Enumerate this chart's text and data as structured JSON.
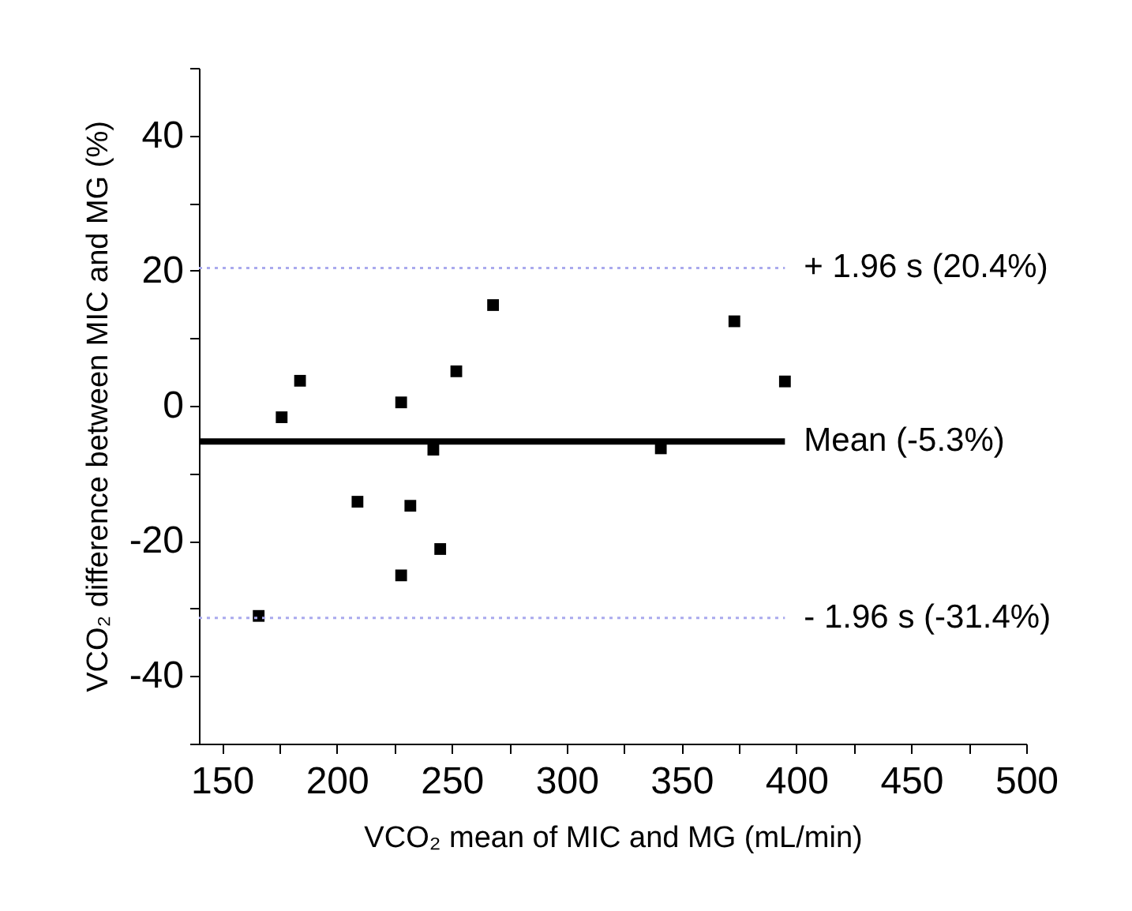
{
  "chart_data": {
    "type": "scatter",
    "xlabel": "VCO₂ mean of MIC and MG (mL/min)",
    "ylabel": "VCO₂ difference between MIC and MG (%)",
    "x": [
      166,
      176,
      184,
      209,
      228,
      228,
      232,
      242,
      245,
      252,
      268,
      341,
      373,
      395
    ],
    "series": [
      {
        "color": "#000000",
        "values": [
          -31.1,
          -1.7,
          3.7,
          -14.2,
          0.5,
          -25.1,
          -14.8,
          -6.5,
          -21.2,
          5.1,
          14.9,
          -6.3,
          12.5,
          3.6
        ]
      }
    ],
    "marker": "square",
    "xlim": [
      140,
      500
    ],
    "xticks": [
      150,
      {
        "value": 175,
        "label": null
      },
      200,
      {
        "value": 225,
        "label": null
      },
      250,
      {
        "value": 275,
        "label": null
      },
      300,
      {
        "value": 325,
        "label": null
      },
      350,
      {
        "value": 375,
        "label": null
      },
      400,
      {
        "value": 425,
        "label": null
      },
      450,
      {
        "value": 475,
        "label": null
      },
      500
    ],
    "ylim": [
      -50,
      50
    ],
    "yticks": [
      {
        "value": -50,
        "label": null
      },
      -40,
      {
        "value": -30,
        "label": null
      },
      -20,
      {
        "value": -10,
        "label": null
      },
      0,
      {
        "value": 10,
        "label": null
      },
      20,
      {
        "value": 30,
        "label": null
      },
      40,
      {
        "value": 50,
        "label": null
      }
    ],
    "ref_lines": [
      {
        "axis": "y",
        "value": 20.4,
        "label": "+ 1.96 s (20.4%)",
        "color": "#aaaaee",
        "line_style": "dotted"
      },
      {
        "axis": "y",
        "value": -5.3,
        "label": "Mean (-5.3%)",
        "color": "#000000",
        "line_style": "solid"
      },
      {
        "axis": "y",
        "value": -31.4,
        "label": "- 1.96 s (-31.4%)",
        "color": "#aaaaee",
        "line_style": "dotted"
      }
    ]
  }
}
